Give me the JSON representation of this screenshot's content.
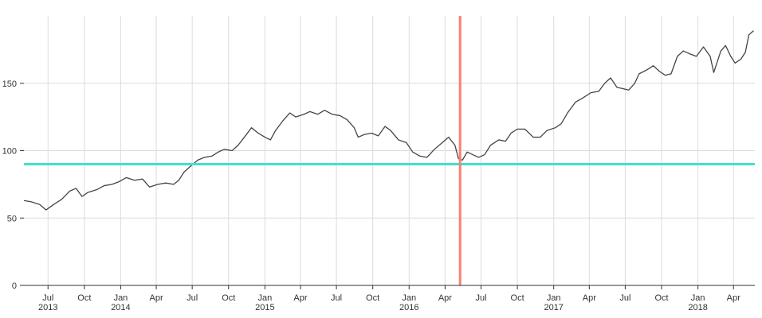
{
  "chart_data": {
    "type": "line",
    "title": "",
    "xlabel": "",
    "ylabel": "",
    "xlim": [
      "2013-05-01",
      "2018-05-25"
    ],
    "ylim": [
      0,
      200
    ],
    "grid": true,
    "y_ticks": [
      0,
      50,
      100,
      150
    ],
    "x_ticks": [
      {
        "date": "2013-07-01",
        "label": "Jul",
        "year": "2013"
      },
      {
        "date": "2013-10-01",
        "label": "Oct",
        "year": ""
      },
      {
        "date": "2014-01-01",
        "label": "Jan",
        "year": "2014"
      },
      {
        "date": "2014-04-01",
        "label": "Apr",
        "year": ""
      },
      {
        "date": "2014-07-01",
        "label": "Jul",
        "year": ""
      },
      {
        "date": "2014-10-01",
        "label": "Oct",
        "year": ""
      },
      {
        "date": "2015-01-01",
        "label": "Jan",
        "year": "2015"
      },
      {
        "date": "2015-04-01",
        "label": "Apr",
        "year": ""
      },
      {
        "date": "2015-07-01",
        "label": "Jul",
        "year": ""
      },
      {
        "date": "2015-10-01",
        "label": "Oct",
        "year": ""
      },
      {
        "date": "2016-01-01",
        "label": "Jan",
        "year": "2016"
      },
      {
        "date": "2016-04-01",
        "label": "Apr",
        "year": ""
      },
      {
        "date": "2016-07-01",
        "label": "Jul",
        "year": ""
      },
      {
        "date": "2016-10-01",
        "label": "Oct",
        "year": ""
      },
      {
        "date": "2017-01-01",
        "label": "Jan",
        "year": "2017"
      },
      {
        "date": "2017-04-01",
        "label": "Apr",
        "year": ""
      },
      {
        "date": "2017-07-01",
        "label": "Jul",
        "year": ""
      },
      {
        "date": "2017-10-01",
        "label": "Oct",
        "year": ""
      },
      {
        "date": "2018-01-01",
        "label": "Jan",
        "year": "2018"
      },
      {
        "date": "2018-04-01",
        "label": "Apr",
        "year": ""
      }
    ],
    "series": [
      {
        "color": "#444444",
        "points": [
          [
            "2013-05-01",
            63
          ],
          [
            "2013-05-20",
            62
          ],
          [
            "2013-06-10",
            60
          ],
          [
            "2013-06-26",
            56
          ],
          [
            "2013-07-15",
            60
          ],
          [
            "2013-08-05",
            64
          ],
          [
            "2013-08-25",
            70
          ],
          [
            "2013-09-10",
            72
          ],
          [
            "2013-09-25",
            66
          ],
          [
            "2013-10-10",
            69
          ],
          [
            "2013-11-01",
            71
          ],
          [
            "2013-11-20",
            74
          ],
          [
            "2013-12-10",
            75
          ],
          [
            "2013-12-28",
            77
          ],
          [
            "2014-01-15",
            80
          ],
          [
            "2014-02-05",
            78
          ],
          [
            "2014-02-25",
            79
          ],
          [
            "2014-03-15",
            73
          ],
          [
            "2014-04-05",
            75
          ],
          [
            "2014-04-25",
            76
          ],
          [
            "2014-05-15",
            75
          ],
          [
            "2014-05-28",
            78
          ],
          [
            "2014-06-10",
            84
          ],
          [
            "2014-06-25",
            88
          ],
          [
            "2014-07-15",
            93
          ],
          [
            "2014-08-01",
            95
          ],
          [
            "2014-08-20",
            96
          ],
          [
            "2014-09-05",
            99
          ],
          [
            "2014-09-20",
            101
          ],
          [
            "2014-10-10",
            100
          ],
          [
            "2014-10-25",
            104
          ],
          [
            "2014-11-10",
            110
          ],
          [
            "2014-11-28",
            117
          ],
          [
            "2014-12-15",
            113
          ],
          [
            "2015-01-01",
            110
          ],
          [
            "2015-01-15",
            108
          ],
          [
            "2015-01-28",
            115
          ],
          [
            "2015-02-15",
            122
          ],
          [
            "2015-03-05",
            128
          ],
          [
            "2015-03-20",
            125
          ],
          [
            "2015-04-10",
            127
          ],
          [
            "2015-04-25",
            129
          ],
          [
            "2015-05-15",
            127
          ],
          [
            "2015-06-01",
            130
          ],
          [
            "2015-06-20",
            127
          ],
          [
            "2015-07-10",
            126
          ],
          [
            "2015-07-28",
            123
          ],
          [
            "2015-08-15",
            117
          ],
          [
            "2015-08-25",
            110
          ],
          [
            "2015-09-10",
            112
          ],
          [
            "2015-09-28",
            113
          ],
          [
            "2015-10-15",
            111
          ],
          [
            "2015-11-01",
            118
          ],
          [
            "2015-11-15",
            115
          ],
          [
            "2015-12-05",
            108
          ],
          [
            "2015-12-25",
            106
          ],
          [
            "2016-01-10",
            99
          ],
          [
            "2016-01-28",
            96
          ],
          [
            "2016-02-15",
            95
          ],
          [
            "2016-03-05",
            101
          ],
          [
            "2016-03-25",
            106
          ],
          [
            "2016-04-10",
            110
          ],
          [
            "2016-04-26",
            104
          ],
          [
            "2016-05-05",
            94
          ],
          [
            "2016-05-15",
            93
          ],
          [
            "2016-05-27",
            99
          ],
          [
            "2016-06-10",
            97
          ],
          [
            "2016-06-25",
            95
          ],
          [
            "2016-07-10",
            97
          ],
          [
            "2016-07-25",
            104
          ],
          [
            "2016-08-15",
            108
          ],
          [
            "2016-09-01",
            107
          ],
          [
            "2016-09-15",
            113
          ],
          [
            "2016-10-01",
            116
          ],
          [
            "2016-10-20",
            116
          ],
          [
            "2016-11-10",
            110
          ],
          [
            "2016-11-28",
            110
          ],
          [
            "2016-12-15",
            115
          ],
          [
            "2017-01-05",
            117
          ],
          [
            "2017-01-20",
            120
          ],
          [
            "2017-02-05",
            128
          ],
          [
            "2017-02-25",
            136
          ],
          [
            "2017-03-15",
            139
          ],
          [
            "2017-04-05",
            143
          ],
          [
            "2017-04-25",
            144
          ],
          [
            "2017-05-10",
            150
          ],
          [
            "2017-05-25",
            154
          ],
          [
            "2017-06-10",
            147
          ],
          [
            "2017-06-25",
            146
          ],
          [
            "2017-07-10",
            145
          ],
          [
            "2017-07-25",
            150
          ],
          [
            "2017-08-05",
            157
          ],
          [
            "2017-08-25",
            160
          ],
          [
            "2017-09-10",
            163
          ],
          [
            "2017-09-25",
            159
          ],
          [
            "2017-10-10",
            156
          ],
          [
            "2017-10-25",
            157
          ],
          [
            "2017-11-10",
            170
          ],
          [
            "2017-11-25",
            174
          ],
          [
            "2017-12-10",
            172
          ],
          [
            "2017-12-28",
            170
          ],
          [
            "2018-01-15",
            177
          ],
          [
            "2018-02-01",
            170
          ],
          [
            "2018-02-10",
            158
          ],
          [
            "2018-02-28",
            174
          ],
          [
            "2018-03-12",
            178
          ],
          [
            "2018-03-25",
            170
          ],
          [
            "2018-04-05",
            165
          ],
          [
            "2018-04-20",
            168
          ],
          [
            "2018-05-01",
            173
          ],
          [
            "2018-05-10",
            186
          ],
          [
            "2018-05-22",
            189
          ]
        ]
      }
    ],
    "reference_lines": [
      {
        "orientation": "horizontal",
        "y": 90,
        "color": "#40e0d0"
      },
      {
        "orientation": "vertical",
        "x": "2016-05-09",
        "color": "#fa8072"
      }
    ]
  }
}
